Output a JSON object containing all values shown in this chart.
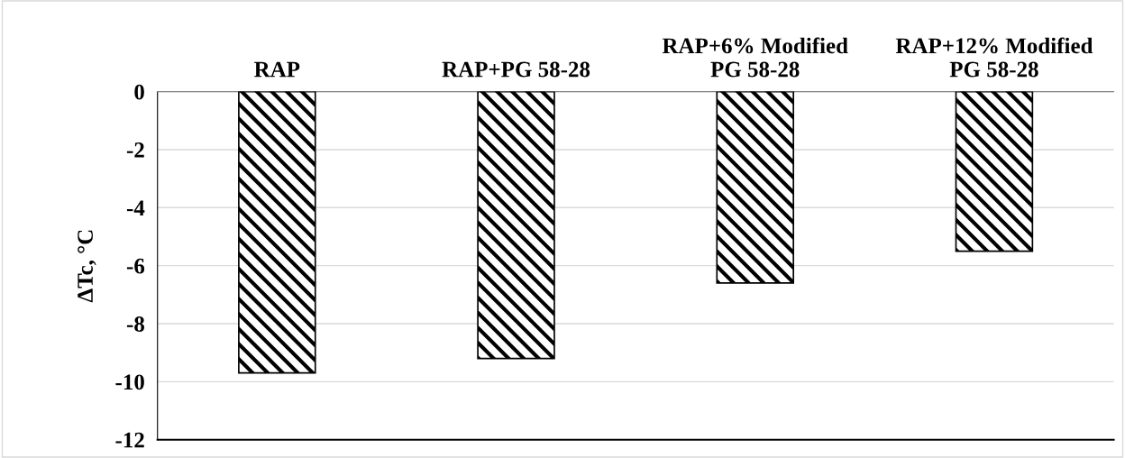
{
  "chart_data": {
    "type": "bar",
    "ylabel": "ΔTc, °C",
    "categories": [
      "RAP",
      "RAP+PG 58-28",
      "RAP+6% Modified\nPG 58-28",
      "RAP+12% Modified\nPG 58-28"
    ],
    "values": [
      -9.7,
      -9.2,
      -6.6,
      -5.5
    ],
    "color": "#000000",
    "ylim": [
      -12,
      0
    ],
    "yticks": [
      -12,
      -10,
      -8,
      -6,
      -4,
      -2,
      0
    ],
    "grid": "y"
  }
}
